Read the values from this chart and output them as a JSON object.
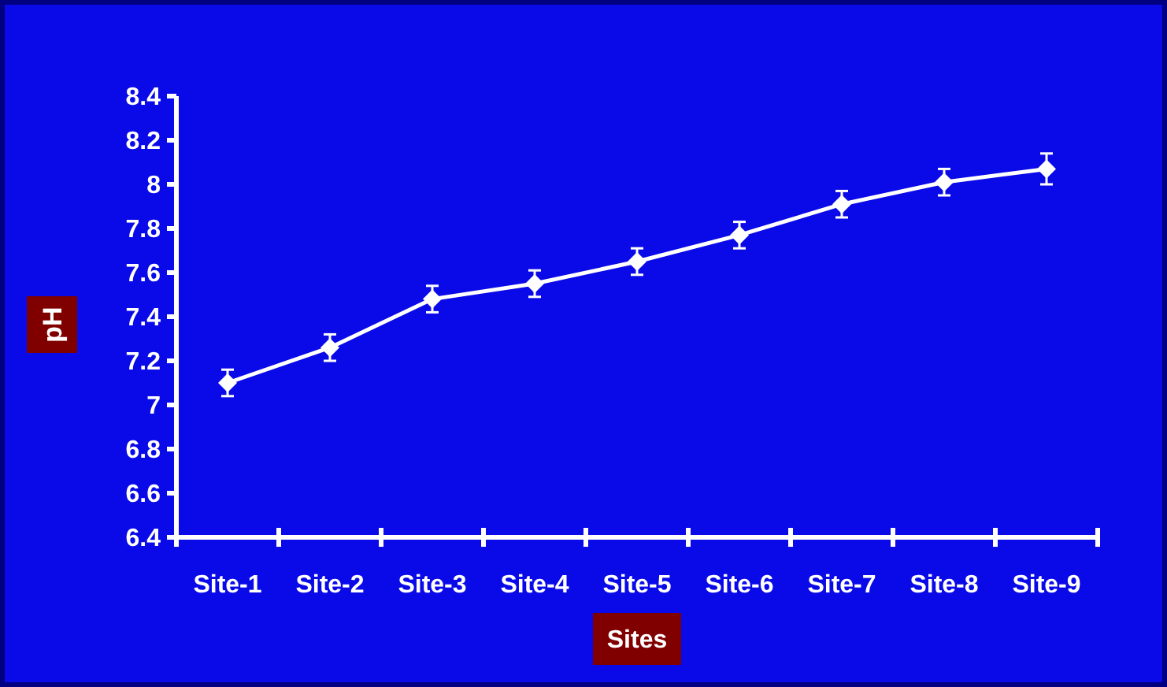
{
  "chart_data": {
    "type": "line",
    "xlabel": "Sites",
    "ylabel": "pH",
    "categories": [
      "Site-1",
      "Site-2",
      "Site-3",
      "Site-4",
      "Site-5",
      "Site-6",
      "Site-7",
      "Site-8",
      "Site-9"
    ],
    "series": [
      {
        "color": "#ffffff",
        "values": [
          7.1,
          7.26,
          7.48,
          7.55,
          7.65,
          7.77,
          7.91,
          8.01,
          8.07
        ],
        "errors": [
          0.06,
          0.06,
          0.06,
          0.06,
          0.06,
          0.06,
          0.06,
          0.06,
          0.07
        ]
      }
    ],
    "ylim": [
      6.4,
      8.4
    ],
    "yticks": [
      6.4,
      6.6,
      6.8,
      7,
      7.2,
      7.4,
      7.6,
      7.8,
      8,
      8.2,
      8.4
    ],
    "grid": false,
    "marker": "diamond",
    "line_style": "solid"
  }
}
